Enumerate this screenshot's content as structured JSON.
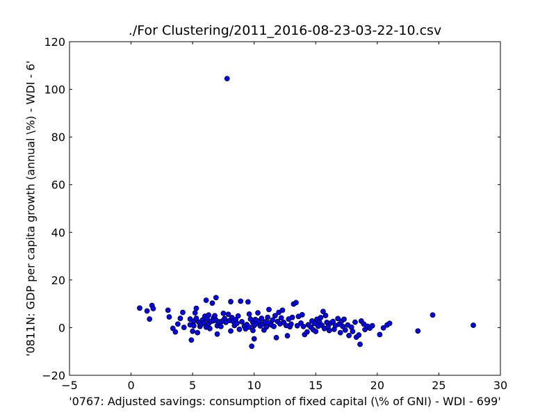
{
  "chart_data": {
    "type": "scatter",
    "title": "./For Clustering/2011_2016-08-23-03-22-10.csv",
    "xlabel": "'0767: Adjusted savings: consumption of fixed capital  (\\% of GNI) - WDI - 699'",
    "ylabel": "'0811N: GDP per capita growth  (annual \\%) - WDI - 6'",
    "xlim": [
      -5,
      30
    ],
    "ylim": [
      -20,
      120
    ],
    "xticks": [
      -5,
      0,
      5,
      10,
      15,
      20,
      25,
      30
    ],
    "yticks": [
      -20,
      0,
      20,
      40,
      60,
      80,
      100,
      120
    ],
    "grid": false,
    "marker_color": "#0000ff",
    "marker_edge": "#000000",
    "points": [
      [
        7.8,
        104.5
      ],
      [
        0.7,
        8.2
      ],
      [
        1.3,
        7.0
      ],
      [
        1.5,
        3.6
      ],
      [
        1.7,
        9.3
      ],
      [
        1.8,
        8.0
      ],
      [
        3.0,
        7.3
      ],
      [
        3.1,
        4.5
      ],
      [
        3.4,
        -0.3
      ],
      [
        3.6,
        -1.8
      ],
      [
        3.8,
        1.5
      ],
      [
        4.0,
        3.9
      ],
      [
        4.2,
        6.4
      ],
      [
        4.3,
        0.1
      ],
      [
        4.8,
        3.6
      ],
      [
        4.8,
        1.2
      ],
      [
        4.9,
        -5.2
      ],
      [
        5.0,
        -1.5
      ],
      [
        5.1,
        2.7
      ],
      [
        5.1,
        0.8
      ],
      [
        5.2,
        6.2
      ],
      [
        5.3,
        8.1
      ],
      [
        5.3,
        3.9
      ],
      [
        5.4,
        -2.1
      ],
      [
        5.5,
        2.3
      ],
      [
        5.6,
        0.5
      ],
      [
        5.7,
        1.4
      ],
      [
        5.8,
        3.2
      ],
      [
        5.9,
        2.0
      ],
      [
        6.0,
        4.8
      ],
      [
        6.1,
        11.5
      ],
      [
        6.1,
        0.2
      ],
      [
        6.2,
        3.6
      ],
      [
        6.3,
        5.3
      ],
      [
        6.3,
        1.7
      ],
      [
        6.4,
        -0.4
      ],
      [
        6.5,
        2.6
      ],
      [
        6.6,
        10.3
      ],
      [
        6.7,
        4.1
      ],
      [
        6.7,
        2.9
      ],
      [
        6.8,
        5.0
      ],
      [
        6.9,
        3.2
      ],
      [
        6.9,
        12.6
      ],
      [
        7.0,
        -2.7
      ],
      [
        7.0,
        0.8
      ],
      [
        7.1,
        1.9
      ],
      [
        7.2,
        2.4
      ],
      [
        7.3,
        0.5
      ],
      [
        7.4,
        2.7
      ],
      [
        7.5,
        6.0
      ],
      [
        7.6,
        3.8
      ],
      [
        7.7,
        2.2
      ],
      [
        7.9,
        5.6
      ],
      [
        8.0,
        3.0
      ],
      [
        8.1,
        -1.4
      ],
      [
        8.1,
        10.9
      ],
      [
        8.2,
        4.2
      ],
      [
        8.3,
        2.6
      ],
      [
        8.4,
        0.9
      ],
      [
        8.5,
        3.3
      ],
      [
        8.6,
        1.8
      ],
      [
        8.7,
        4.9
      ],
      [
        8.8,
        -0.7
      ],
      [
        8.9,
        11.1
      ],
      [
        9.0,
        2.5
      ],
      [
        9.2,
        0.6
      ],
      [
        9.3,
        -0.5
      ],
      [
        9.4,
        1.3
      ],
      [
        9.5,
        10.8
      ],
      [
        9.6,
        5.7
      ],
      [
        9.6,
        0.2
      ],
      [
        9.7,
        3.6
      ],
      [
        9.8,
        -7.8
      ],
      [
        9.9,
        2.1
      ],
      [
        9.9,
        -1.2
      ],
      [
        10.0,
        -4.7
      ],
      [
        10.0,
        0.9
      ],
      [
        10.1,
        3.4
      ],
      [
        10.2,
        1.7
      ],
      [
        10.3,
        6.2
      ],
      [
        10.4,
        2.8
      ],
      [
        10.5,
        0.7
      ],
      [
        10.6,
        3.9
      ],
      [
        10.7,
        1.5
      ],
      [
        10.8,
        -1.0
      ],
      [
        10.9,
        2.4
      ],
      [
        11.0,
        0.3
      ],
      [
        11.1,
        4.3
      ],
      [
        11.2,
        7.6
      ],
      [
        11.2,
        2.0
      ],
      [
        11.4,
        1.1
      ],
      [
        11.5,
        3.2
      ],
      [
        11.6,
        0.5
      ],
      [
        11.7,
        5.0
      ],
      [
        11.8,
        -4.2
      ],
      [
        11.9,
        2.6
      ],
      [
        12.0,
        6.4
      ],
      [
        12.1,
        1.6
      ],
      [
        12.2,
        4.1
      ],
      [
        12.3,
        7.3
      ],
      [
        12.4,
        2.2
      ],
      [
        12.6,
        0.9
      ],
      [
        12.7,
        -3.4
      ],
      [
        12.8,
        3.6
      ],
      [
        12.9,
        0.4
      ],
      [
        13.0,
        1.5
      ],
      [
        13.1,
        4.3
      ],
      [
        13.2,
        9.9
      ],
      [
        13.4,
        10.5
      ],
      [
        13.5,
        0.8
      ],
      [
        13.6,
        4.7
      ],
      [
        13.8,
        1.9
      ],
      [
        13.9,
        5.4
      ],
      [
        14.0,
        0.5
      ],
      [
        14.1,
        -2.9
      ],
      [
        14.3,
        -1.8
      ],
      [
        14.4,
        1.2
      ],
      [
        14.6,
        0.2
      ],
      [
        14.7,
        2.8
      ],
      [
        14.8,
        -0.9
      ],
      [
        14.9,
        1.7
      ],
      [
        15.0,
        -1.6
      ],
      [
        15.1,
        3.5
      ],
      [
        15.2,
        0.6
      ],
      [
        15.3,
        2.4
      ],
      [
        15.4,
        4.2
      ],
      [
        15.5,
        1.0
      ],
      [
        15.6,
        6.8
      ],
      [
        15.7,
        -0.4
      ],
      [
        15.8,
        5.1
      ],
      [
        15.9,
        2.2
      ],
      [
        16.0,
        0.3
      ],
      [
        16.1,
        -1.2
      ],
      [
        16.2,
        1.9
      ],
      [
        16.4,
        2.6
      ],
      [
        16.5,
        -0.7
      ],
      [
        16.6,
        0.9
      ],
      [
        16.8,
        3.8
      ],
      [
        16.9,
        1.4
      ],
      [
        17.0,
        -2.1
      ],
      [
        17.1,
        2.7
      ],
      [
        17.2,
        0.5
      ],
      [
        17.3,
        3.5
      ],
      [
        17.4,
        -1.0
      ],
      [
        17.6,
        1.1
      ],
      [
        17.7,
        -3.3
      ],
      [
        17.9,
        0.2
      ],
      [
        18.0,
        -1.6
      ],
      [
        18.2,
        2.3
      ],
      [
        18.3,
        -4.0
      ],
      [
        18.5,
        -3.1
      ],
      [
        18.6,
        -7.0
      ],
      [
        18.7,
        2.8
      ],
      [
        18.9,
        1.5
      ],
      [
        19.0,
        -0.8
      ],
      [
        19.2,
        0.6
      ],
      [
        19.4,
        -0.2
      ],
      [
        19.6,
        0.8
      ],
      [
        20.2,
        -2.9
      ],
      [
        20.5,
        -0.1
      ],
      [
        20.8,
        1.1
      ],
      [
        21.0,
        1.8
      ],
      [
        23.3,
        -1.4
      ],
      [
        24.5,
        5.3
      ],
      [
        27.8,
        1.0
      ]
    ]
  }
}
